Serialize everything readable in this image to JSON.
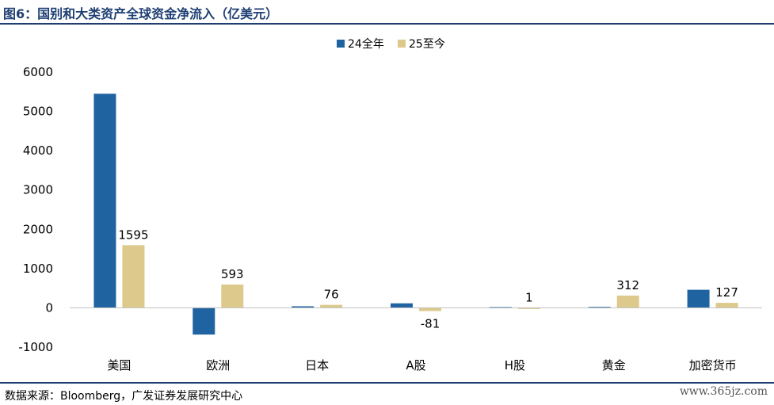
{
  "header": {
    "title": "图6：国别和大类资产全球资金净流入（亿美元）"
  },
  "footer": {
    "source": "数据来源：Bloomberg，广发证券发展研究中心",
    "watermark": "www.365jz.com"
  },
  "colors": {
    "series_1": "#1f63a1",
    "series_2": "#dcc98b",
    "accent": "#1f3f73"
  },
  "chart_data": {
    "type": "bar",
    "categories": [
      "美国",
      "欧洲",
      "日本",
      "A股",
      "H股",
      "黄金",
      "加密货币"
    ],
    "series": [
      {
        "name": "24全年",
        "values": [
          5450,
          -680,
          40,
          115,
          20,
          25,
          460
        ]
      },
      {
        "name": "25至今",
        "values": [
          1595,
          593,
          76,
          -81,
          1,
          312,
          127
        ]
      }
    ],
    "data_labels": [
      "1595",
      "593",
      "76",
      "-81",
      "1",
      "312",
      "127"
    ],
    "yticks": [
      "6000",
      "5000",
      "4000",
      "3000",
      "2000",
      "1000",
      "0",
      "-1000"
    ],
    "ylim": [
      -1000,
      6000
    ],
    "legend_position": "top",
    "grid": false
  }
}
